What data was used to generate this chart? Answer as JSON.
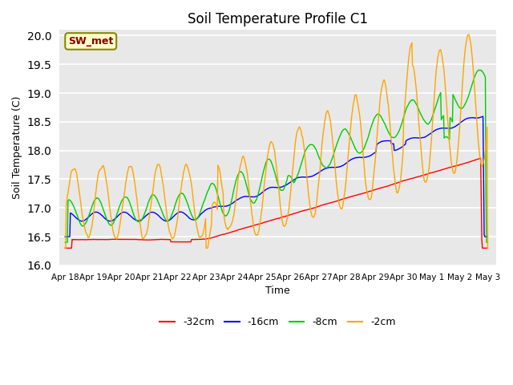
{
  "title": "Soil Temperature Profile C1",
  "xlabel": "Time",
  "ylabel": "Soil Temperature (C)",
  "ylim": [
    16.0,
    20.1
  ],
  "bg_color": "#e8e8e8",
  "grid_color": "white",
  "annotation_text": "SW_met",
  "annotation_bg": "#ffffcc",
  "annotation_border": "#888800",
  "annotation_text_color": "#880000",
  "series": [
    {
      "label": "-32cm",
      "color": "#ff0000"
    },
    {
      "label": "-16cm",
      "color": "#0000ff"
    },
    {
      "label": "-8cm",
      "color": "#00cc00"
    },
    {
      "label": "-2cm",
      "color": "#ffa500"
    }
  ],
  "tick_labels": [
    "Apr 18",
    "Apr 19",
    "Apr 20",
    "Apr 21",
    "Apr 22",
    "Apr 23",
    "Apr 24",
    "Apr 25",
    "Apr 26",
    "Apr 27",
    "Apr 28",
    "Apr 29",
    "Apr 30",
    "May 1",
    "May 2",
    "May 3"
  ],
  "tick_positions": [
    0,
    1,
    2,
    3,
    4,
    5,
    6,
    7,
    8,
    9,
    10,
    11,
    12,
    13,
    14,
    15
  ]
}
